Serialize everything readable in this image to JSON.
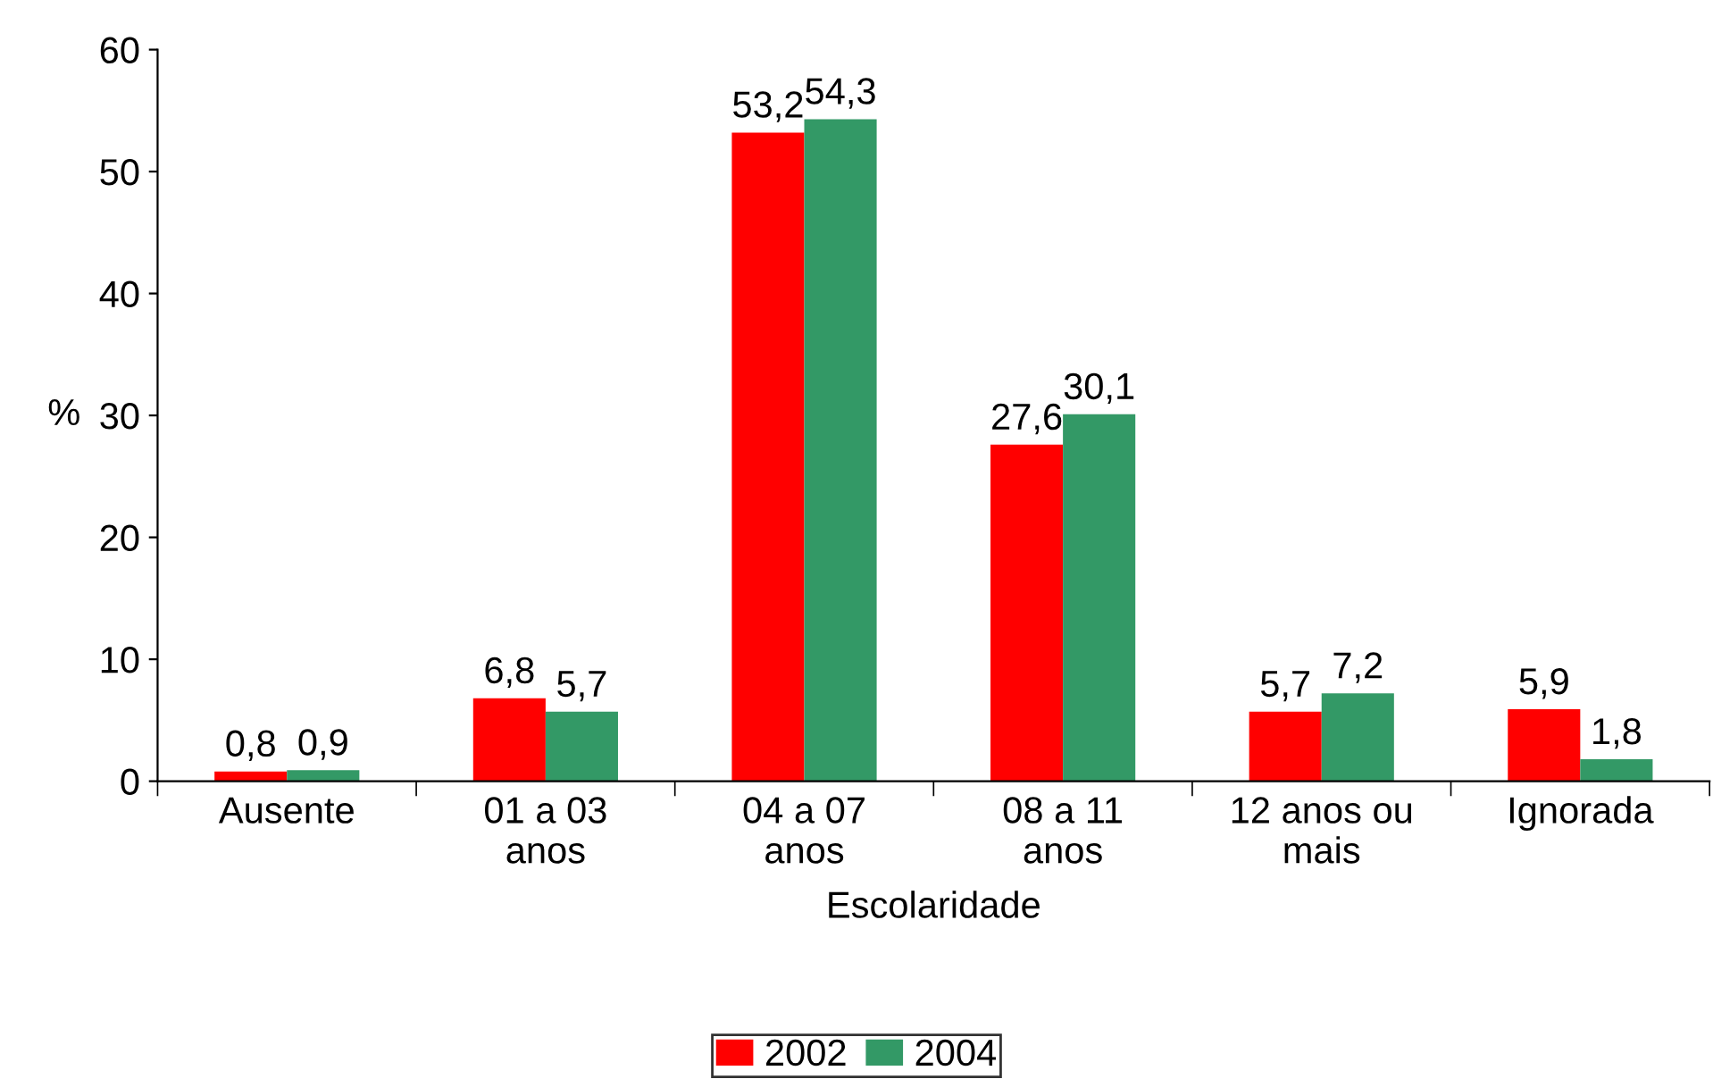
{
  "chart_data": {
    "type": "bar",
    "xlabel": "Escolaridade",
    "ylabel": "%",
    "categories": [
      "Ausente",
      "01 a 03\nanos",
      "04 a 07\nanos",
      "08 a 11\nanos",
      "12 anos ou\nmais",
      "Ignorada"
    ],
    "series": [
      {
        "name": "2002",
        "color": "#ff0000",
        "values": [
          0.8,
          6.8,
          53.2,
          27.6,
          5.7,
          5.9
        ],
        "value_labels": [
          "0,8",
          "6,8",
          "53,2",
          "27,6",
          "5,7",
          "5,9"
        ]
      },
      {
        "name": "2004",
        "color": "#339966",
        "values": [
          0.9,
          5.7,
          54.3,
          30.1,
          7.2,
          1.8
        ],
        "value_labels": [
          "0,9",
          "5,7",
          "54,3",
          "30,1",
          "7,2",
          "1,8"
        ]
      }
    ],
    "ylim": [
      0,
      60
    ],
    "yticks": [
      0,
      10,
      20,
      30,
      40,
      50,
      60
    ],
    "grid": false,
    "legend": "bottom"
  }
}
